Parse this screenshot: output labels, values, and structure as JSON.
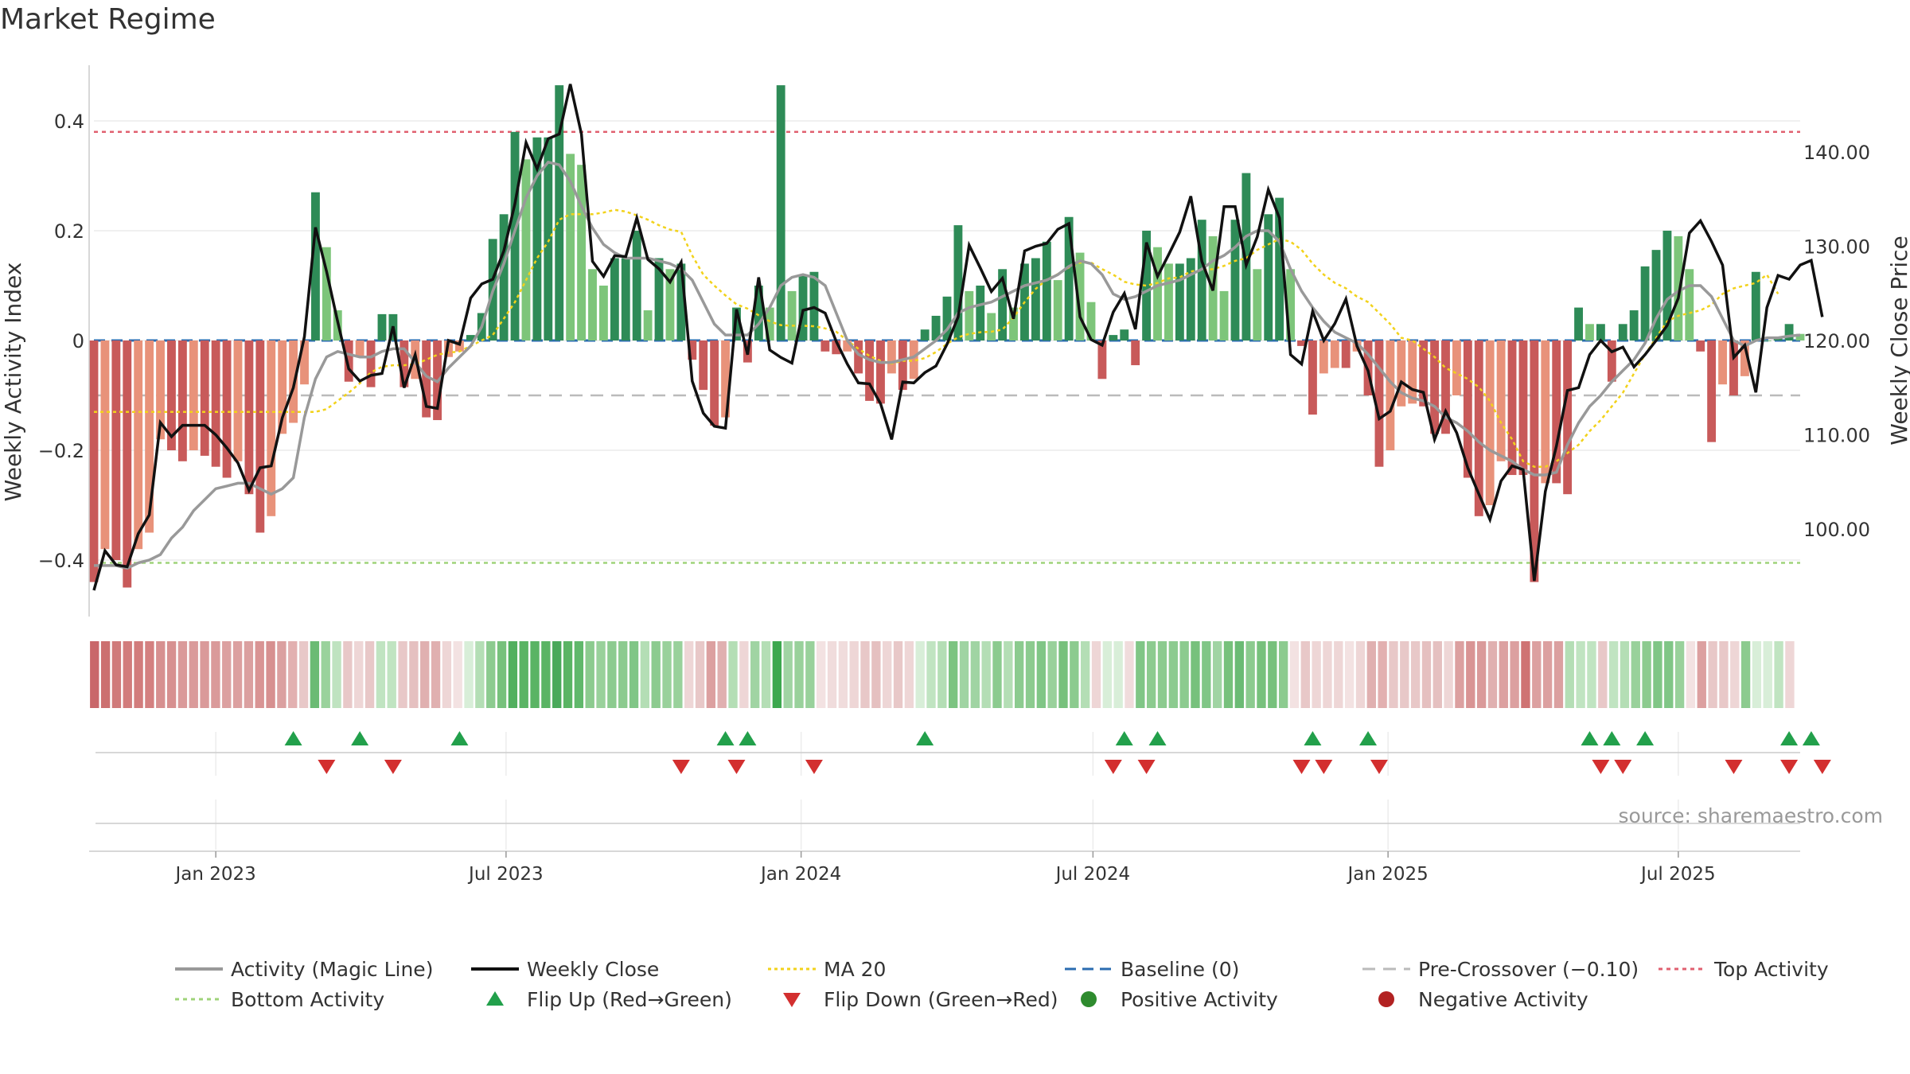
{
  "title": "Market Regime",
  "source": "source: sharemaestro.com",
  "colors": {
    "magic_line": "#999999",
    "close": "#111111",
    "ma20": "#f2d21b",
    "baseline": "#2b6cb0",
    "pre_crossover": "#bbbbbb",
    "top_line": "#e06070",
    "bottom_line": "#9fd37a",
    "flip_up": "#22a04b",
    "flip_down": "#d32f2f",
    "pos_dark": "#2e8b57",
    "pos_light": "#7dc57a",
    "neg_dark": "#c85a5a",
    "neg_light": "#e8927a"
  },
  "chart_data": {
    "type": "bar",
    "ylabel_left": "Weekly Activity Index",
    "ylabel_right": "Weekly Close Price",
    "left_ticks": [
      "0.4",
      "0.2",
      "0",
      "−0.2",
      "−0.4"
    ],
    "right_ticks": [
      "140.00",
      "130.00",
      "120.00",
      "110.00",
      "100.00"
    ],
    "left_ylim": [
      -0.45,
      0.5
    ],
    "right_ylim": [
      92,
      150
    ],
    "x_ticks": [
      "Jan 2023",
      "Jul 2023",
      "Jan 2024",
      "Jul 2024",
      "Jan 2025",
      "Jul 2025"
    ],
    "x_range": [
      "2022-10-17",
      "2025-09-15"
    ],
    "levels": {
      "top": 0.38,
      "bottom": -0.405,
      "pre_crossover": -0.1,
      "baseline": 0
    },
    "activity": [
      -0.44,
      -0.38,
      -0.4,
      -0.45,
      -0.38,
      -0.35,
      -0.18,
      -0.2,
      -0.22,
      -0.2,
      -0.21,
      -0.23,
      -0.25,
      -0.22,
      -0.28,
      -0.35,
      -0.32,
      -0.17,
      -0.15,
      -0.08,
      0.27,
      0.17,
      0.055,
      -0.075,
      -0.03,
      -0.085,
      0.048,
      0.048,
      -0.085,
      -0.07,
      -0.14,
      -0.145,
      -0.03,
      -0.02,
      0.01,
      0.05,
      0.185,
      0.23,
      0.38,
      0.33,
      0.37,
      0.37,
      0.465,
      0.34,
      0.32,
      0.13,
      0.1,
      0.15,
      0.15,
      0.2,
      0.055,
      0.15,
      0.13,
      0.14,
      -0.035,
      -0.09,
      -0.155,
      -0.14,
      0.06,
      -0.04,
      0.1,
      0.06,
      0.465,
      0.09,
      0.12,
      0.125,
      -0.02,
      -0.025,
      -0.02,
      -0.06,
      -0.11,
      -0.115,
      -0.06,
      -0.09,
      -0.07,
      0.02,
      0.045,
      0.08,
      0.21,
      0.09,
      0.1,
      0.05,
      0.13,
      0.06,
      0.14,
      0.15,
      0.18,
      0.11,
      0.225,
      0.16,
      0.07,
      -0.07,
      0.01,
      0.02,
      -0.045,
      0.2,
      0.17,
      0.14,
      0.14,
      0.15,
      0.22,
      0.19,
      0.09,
      0.22,
      0.305,
      0.13,
      0.23,
      0.26,
      0.13,
      -0.01,
      -0.135,
      -0.06,
      -0.05,
      -0.05,
      -0.02,
      -0.1,
      -0.23,
      -0.2,
      -0.12,
      -0.115,
      -0.12,
      -0.17,
      -0.17,
      -0.1,
      -0.25,
      -0.32,
      -0.3,
      -0.22,
      -0.245,
      -0.245,
      -0.44,
      -0.26,
      -0.26,
      -0.28,
      0.06,
      0.03,
      0.03,
      -0.075,
      0.03,
      0.055,
      0.135,
      0.165,
      0.2,
      0.19,
      0.13,
      -0.02,
      -0.185,
      -0.08,
      -0.1,
      -0.065,
      0.125,
      0.0,
      0.005,
      0.03,
      0.012
    ],
    "magic_line": [
      -0.41,
      -0.41,
      -0.41,
      -0.415,
      -0.405,
      -0.4,
      -0.39,
      -0.36,
      -0.34,
      -0.31,
      -0.29,
      -0.27,
      -0.265,
      -0.26,
      -0.26,
      -0.27,
      -0.28,
      -0.27,
      -0.25,
      -0.14,
      -0.07,
      -0.03,
      -0.02,
      -0.025,
      -0.03,
      -0.03,
      -0.02,
      -0.015,
      -0.015,
      -0.04,
      -0.065,
      -0.075,
      -0.05,
      -0.03,
      -0.01,
      0.025,
      0.09,
      0.14,
      0.2,
      0.26,
      0.3,
      0.325,
      0.32,
      0.29,
      0.245,
      0.205,
      0.175,
      0.16,
      0.15,
      0.15,
      0.15,
      0.145,
      0.14,
      0.13,
      0.11,
      0.07,
      0.03,
      0.01,
      0.01,
      0.01,
      0.03,
      0.06,
      0.1,
      0.115,
      0.12,
      0.115,
      0.1,
      0.05,
      0.0,
      -0.025,
      -0.035,
      -0.04,
      -0.04,
      -0.035,
      -0.03,
      -0.015,
      0.0,
      0.02,
      0.05,
      0.06,
      0.065,
      0.07,
      0.08,
      0.09,
      0.1,
      0.105,
      0.11,
      0.12,
      0.135,
      0.145,
      0.14,
      0.12,
      0.085,
      0.075,
      0.08,
      0.09,
      0.1,
      0.105,
      0.11,
      0.12,
      0.13,
      0.145,
      0.155,
      0.17,
      0.19,
      0.2,
      0.2,
      0.18,
      0.13,
      0.09,
      0.06,
      0.035,
      0.015,
      0.005,
      -0.005,
      -0.025,
      -0.05,
      -0.075,
      -0.095,
      -0.105,
      -0.11,
      -0.12,
      -0.14,
      -0.15,
      -0.165,
      -0.185,
      -0.2,
      -0.21,
      -0.22,
      -0.235,
      -0.245,
      -0.245,
      -0.24,
      -0.19,
      -0.15,
      -0.12,
      -0.1,
      -0.075,
      -0.055,
      -0.035,
      -0.005,
      0.04,
      0.075,
      0.09,
      0.1,
      0.1,
      0.08,
      0.04,
      0.0,
      -0.01,
      0.0,
      0.005,
      0.005,
      0.008,
      0.01
    ],
    "close": [
      93.5,
      97.7,
      96.2,
      96,
      99.5,
      101.5,
      111.3,
      109.8,
      111,
      111,
      111,
      110,
      108.6,
      107,
      104.1,
      106.5,
      106.7,
      111.8,
      115,
      120.4,
      132,
      127.3,
      122,
      117,
      115.7,
      116.3,
      116.5,
      121.5,
      115,
      118.5,
      113,
      112.8,
      120,
      119.6,
      124.5,
      126,
      126.5,
      129.5,
      134.5,
      141,
      138.2,
      141.4,
      141.9,
      147.2,
      141.9,
      128.4,
      126.8,
      129,
      128.9,
      133,
      128.6,
      127.6,
      126.2,
      128.3,
      115.7,
      112.3,
      110.9,
      110.7,
      123.3,
      118.5,
      126.7,
      119,
      118.2,
      117.6,
      123.2,
      123.5,
      122.9,
      119.9,
      117.5,
      115.5,
      115.4,
      113.3,
      109.5,
      115.6,
      115.5,
      116.6,
      117.3,
      119.6,
      122.5,
      130.1,
      127.7,
      125.2,
      126.6,
      122.3,
      129.5,
      130,
      130.3,
      131.8,
      132.4,
      122.5,
      120.1,
      119.5,
      123,
      125,
      121.2,
      130.4,
      126.8,
      129.1,
      131.5,
      135.3,
      128.4,
      125.3,
      134.2,
      134.2,
      128,
      131,
      136,
      133,
      118.5,
      117.5,
      123.1,
      120,
      121.8,
      124.4,
      119.4,
      116.8,
      111.7,
      112.5,
      115.6,
      114.8,
      114.5,
      109.5,
      112.5,
      110.2,
      106.5,
      103.7,
      101,
      105.1,
      106.7,
      106.3,
      94.5,
      104,
      108.8,
      114.7,
      115,
      118.5,
      120,
      118.8,
      119.3,
      117.2,
      118.5,
      120,
      121.6,
      124.5,
      131.4,
      132.7,
      130.5,
      128,
      118.2,
      119.5,
      114.5,
      123.5,
      126.9,
      126.5,
      128,
      128.5,
      122.5
    ],
    "ma20": [
      -0.13,
      -0.13,
      -0.13,
      -0.13,
      -0.13,
      -0.13,
      -0.13,
      -0.13,
      -0.13,
      -0.13,
      -0.13,
      -0.13,
      -0.13,
      -0.13,
      -0.13,
      -0.13,
      -0.13,
      -0.13,
      -0.13,
      -0.13,
      -0.13,
      -0.125,
      -0.11,
      -0.095,
      -0.078,
      -0.058,
      -0.048,
      -0.045,
      -0.045,
      -0.043,
      -0.035,
      -0.026,
      -0.022,
      -0.02,
      -0.01,
      0.0,
      0.01,
      0.04,
      0.07,
      0.11,
      0.15,
      0.18,
      0.22,
      0.23,
      0.23,
      0.23,
      0.233,
      0.238,
      0.235,
      0.228,
      0.22,
      0.21,
      0.202,
      0.198,
      0.155,
      0.12,
      0.1,
      0.082,
      0.066,
      0.058,
      0.046,
      0.035,
      0.028,
      0.027,
      0.027,
      0.026,
      0.022,
      0.016,
      0.0,
      -0.015,
      -0.028,
      -0.037,
      -0.042,
      -0.037,
      -0.037,
      -0.032,
      -0.021,
      -0.006,
      0.006,
      0.012,
      0.015,
      0.016,
      0.02,
      0.042,
      0.07,
      0.094,
      0.111,
      0.121,
      0.133,
      0.142,
      0.142,
      0.13,
      0.12,
      0.107,
      0.102,
      0.1,
      0.105,
      0.113,
      0.115,
      0.126,
      0.128,
      0.13,
      0.136,
      0.145,
      0.15,
      0.165,
      0.175,
      0.185,
      0.18,
      0.165,
      0.14,
      0.12,
      0.105,
      0.095,
      0.08,
      0.07,
      0.05,
      0.03,
      0.005,
      0.0,
      -0.015,
      -0.03,
      -0.05,
      -0.06,
      -0.07,
      -0.085,
      -0.11,
      -0.15,
      -0.18,
      -0.22,
      -0.23,
      -0.23,
      -0.22,
      -0.205,
      -0.19,
      -0.165,
      -0.145,
      -0.12,
      -0.095,
      -0.06,
      -0.025,
      0.005,
      0.035,
      0.045,
      0.05,
      0.055,
      0.065,
      0.085,
      0.095,
      0.1,
      0.105,
      0.12,
      0.085
    ],
    "strip_shades": [
      "#c9676a",
      "#cc7070",
      "#d07a7a",
      "#d27c7c",
      "#d27c7c",
      "#d48080",
      "#d79090",
      "#d79090",
      "#da9a9a",
      "#da9a9a",
      "#da9a9a",
      "#da9a9a",
      "#dca0a0",
      "#dca0a0",
      "#dba0a0",
      "#d99494",
      "#d79090",
      "#dba0a0",
      "#e2b0b0",
      "#e8c8c8",
      "#6bbb74",
      "#9ad29c",
      "#bfe3c0",
      "#e8c8c8",
      "#eed6d6",
      "#e8c8c8",
      "#c0e4c1",
      "#c0e4c1",
      "#e8c8c8",
      "#e5c0c0",
      "#e0b0b0",
      "#e0b0b0",
      "#eed6d6",
      "#f3e2e2",
      "#d8eed8",
      "#b4deb5",
      "#8ccb8f",
      "#77c17c",
      "#52b05f",
      "#5ab464",
      "#5ab464",
      "#5ab464",
      "#49a95a",
      "#5ab464",
      "#60b86b",
      "#8ccb8f",
      "#99d19b",
      "#8ccb8f",
      "#8ccb8f",
      "#80c686",
      "#b4deb5",
      "#8ccb8f",
      "#99d19b",
      "#99d19b",
      "#eed6d6",
      "#e8c8c8",
      "#dca0a0",
      "#e0b0b0",
      "#b4deb5",
      "#eed6d6",
      "#a0d4a3",
      "#b4deb5",
      "#3da84f",
      "#a0d4a3",
      "#99d19b",
      "#99d19b",
      "#f3e2e2",
      "#f0dcdc",
      "#f0dcdc",
      "#eed6d6",
      "#e8c8c8",
      "#e5c0c0",
      "#eed6d6",
      "#e8c8c8",
      "#eed6d6",
      "#d8eed8",
      "#c0e4c1",
      "#b4deb5",
      "#7cc481",
      "#a0d4a3",
      "#a0d4a3",
      "#b4deb5",
      "#8ccb8f",
      "#b4deb5",
      "#8ccb8f",
      "#8ccb8f",
      "#80c686",
      "#99d19b",
      "#77c17c",
      "#8ccb8f",
      "#b4deb5",
      "#eed6d6",
      "#d8eed8",
      "#d8eed8",
      "#f0dcdc",
      "#80c686",
      "#8ccb8f",
      "#8ccb8f",
      "#8ccb8f",
      "#8ccb8f",
      "#77c17c",
      "#80c686",
      "#a0d4a3",
      "#77c17c",
      "#6bbb74",
      "#8ccb8f",
      "#77c17c",
      "#77c17c",
      "#8ccb8f",
      "#f3e2e2",
      "#e8c8c8",
      "#eed6d6",
      "#eed6d6",
      "#eed6d6",
      "#f3e2e2",
      "#eed6d6",
      "#e0b0b0",
      "#e2b0b0",
      "#e8c8c8",
      "#e8c8c8",
      "#e8c8c8",
      "#e5c0c0",
      "#e5c0c0",
      "#eed6d6",
      "#dca0a0",
      "#d99494",
      "#da9a9a",
      "#e0b0b0",
      "#dca0a0",
      "#dca0a0",
      "#cf7373",
      "#dca0a0",
      "#dca0a0",
      "#dba0a0",
      "#b4deb5",
      "#c0e4c1",
      "#c0e4c1",
      "#e8c8c8",
      "#c0e4c1",
      "#b4deb5",
      "#99d19b",
      "#8ccb8f",
      "#80c686",
      "#80c686",
      "#99d19b",
      "#f3e2e2",
      "#dca0a0",
      "#e8c8c8",
      "#e8c8c8",
      "#eed6d6",
      "#8ccb8f",
      "#d8eed8",
      "#d8eed8",
      "#c0e4c1",
      "#eed6d6"
    ],
    "flip_up_weeks": [
      18,
      24,
      33,
      57,
      59,
      75,
      93,
      96,
      110,
      115,
      135,
      137,
      140,
      153,
      155
    ],
    "flip_down_weeks": [
      21,
      27,
      53,
      58,
      65,
      92,
      95,
      109,
      111,
      116,
      136,
      138,
      148,
      153,
      156
    ],
    "legend": [
      {
        "key": "magic",
        "label": "Activity (Magic Line)"
      },
      {
        "key": "close",
        "label": "Weekly Close"
      },
      {
        "key": "ma20",
        "label": "MA 20"
      },
      {
        "key": "baseline",
        "label": "Baseline (0)"
      },
      {
        "key": "pre",
        "label": "Pre-Crossover (−0.10)"
      },
      {
        "key": "top",
        "label": "Top Activity"
      },
      {
        "key": "bottom",
        "label": "Bottom Activity"
      },
      {
        "key": "flipup",
        "label": "Flip Up (Red→Green)"
      },
      {
        "key": "flipdown",
        "label": "Flip Down (Green→Red)"
      },
      {
        "key": "pos",
        "label": "Positive Activity"
      },
      {
        "key": "neg",
        "label": "Negative Activity"
      }
    ]
  }
}
